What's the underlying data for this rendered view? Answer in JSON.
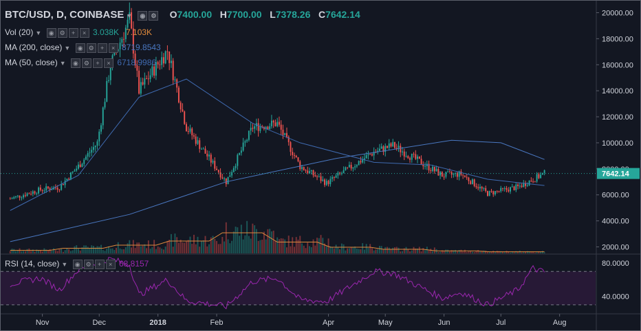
{
  "header": {
    "symbol": "BTC/USD, D, COINBASE",
    "o_label": "O",
    "o_value": "7400.00",
    "h_label": "H",
    "h_value": "7700.00",
    "l_label": "L",
    "l_value": "7378.26",
    "c_label": "C",
    "c_value": "7642.14"
  },
  "indicators": {
    "vol": {
      "name": "Vol (20)",
      "value1": "3.038K",
      "value2": "7.103K"
    },
    "ma200": {
      "name": "MA (200, close)",
      "value": "8719.8543"
    },
    "ma50": {
      "name": "MA (50, close)",
      "value": "6718.9986"
    },
    "rsi": {
      "name": "RSI (14, close)",
      "value": "68.8157"
    }
  },
  "colors": {
    "up": "#26a69a",
    "down": "#ef5350",
    "ma200": "#4a78c2",
    "ma50": "#3f6ab0",
    "vol_ma": "#e08a3c",
    "rsi": "#9c27b0",
    "background": "#131722",
    "axis_text": "#d1d4dc"
  },
  "chart_data": [
    {
      "type": "candlestick",
      "symbol": "BTC/USD",
      "interval": "D",
      "exchange": "COINBASE",
      "ylim": [
        1500,
        20500
      ],
      "y_ticks": [
        2000,
        4000,
        6000,
        8000,
        10000,
        12000,
        14000,
        16000,
        18000,
        20000
      ],
      "y_tick_labels": [
        "2000.00",
        "4000.00",
        "6000.00",
        "8000.00",
        "10000.00",
        "12000.00",
        "14000.00",
        "16000.00",
        "18000.00",
        "20000.00"
      ],
      "x_labels": [
        "Nov",
        "Dec",
        "2018",
        "Feb",
        "Apr",
        "May",
        "Jun",
        "Jul",
        "Aug"
      ],
      "last_price_label": "7642.14",
      "price_points": [
        {
          "date": "2017-10-15",
          "close": 5700
        },
        {
          "date": "2017-10-31",
          "close": 6400
        },
        {
          "date": "2017-11-10",
          "close": 6600
        },
        {
          "date": "2017-11-20",
          "close": 8200
        },
        {
          "date": "2017-11-30",
          "close": 10000
        },
        {
          "date": "2017-12-07",
          "close": 16000
        },
        {
          "date": "2017-12-17",
          "close": 19500
        },
        {
          "date": "2017-12-22",
          "close": 14000
        },
        {
          "date": "2018-01-06",
          "close": 17100
        },
        {
          "date": "2018-01-16",
          "close": 11200
        },
        {
          "date": "2018-02-06",
          "close": 7000
        },
        {
          "date": "2018-02-20",
          "close": 11200
        },
        {
          "date": "2018-03-05",
          "close": 11500
        },
        {
          "date": "2018-03-17",
          "close": 8200
        },
        {
          "date": "2018-03-31",
          "close": 6900
        },
        {
          "date": "2018-04-25",
          "close": 9300
        },
        {
          "date": "2018-05-05",
          "close": 9800
        },
        {
          "date": "2018-05-31",
          "close": 7500
        },
        {
          "date": "2018-06-10",
          "close": 7600
        },
        {
          "date": "2018-06-24",
          "close": 6100
        },
        {
          "date": "2018-07-10",
          "close": 6600
        },
        {
          "date": "2018-07-24",
          "close": 7642
        }
      ],
      "ma200_points": [
        {
          "date": "2017-10-15",
          "value": 2400
        },
        {
          "date": "2017-12-17",
          "value": 4500
        },
        {
          "date": "2018-02-06",
          "value": 7000
        },
        {
          "date": "2018-04-05",
          "value": 8800
        },
        {
          "date": "2018-06-05",
          "value": 10200
        },
        {
          "date": "2018-07-01",
          "value": 10000
        },
        {
          "date": "2018-07-24",
          "value": 8720
        }
      ],
      "ma50_points": [
        {
          "date": "2017-10-15",
          "value": 4800
        },
        {
          "date": "2017-11-20",
          "value": 7500
        },
        {
          "date": "2017-12-22",
          "value": 13500
        },
        {
          "date": "2018-01-16",
          "value": 14900
        },
        {
          "date": "2018-02-20",
          "value": 11500
        },
        {
          "date": "2018-03-17",
          "value": 10000
        },
        {
          "date": "2018-04-25",
          "value": 8500
        },
        {
          "date": "2018-05-25",
          "value": 8300
        },
        {
          "date": "2018-06-24",
          "value": 7200
        },
        {
          "date": "2018-07-24",
          "value": 6719
        }
      ]
    },
    {
      "type": "bar",
      "name": "Vol (20)",
      "description_note": "volume bars along bottom of price pane",
      "approx_relative_levels": [
        0.15,
        0.25,
        0.4,
        0.6,
        1.0,
        0.55,
        0.3,
        0.2,
        0.12,
        0.08
      ]
    },
    {
      "type": "line",
      "name": "RSI (14, close)",
      "ylim": [
        20,
        90
      ],
      "y_ticks": [
        40,
        80
      ],
      "y_tick_labels": [
        "40.0000",
        "80.0000"
      ],
      "bands": [
        30,
        70
      ],
      "points": [
        {
          "date": "2017-10-15",
          "value": 55
        },
        {
          "date": "2017-10-31",
          "value": 62
        },
        {
          "date": "2017-11-10",
          "value": 48
        },
        {
          "date": "2017-11-20",
          "value": 72
        },
        {
          "date": "2017-12-07",
          "value": 85
        },
        {
          "date": "2017-12-17",
          "value": 78
        },
        {
          "date": "2017-12-22",
          "value": 42
        },
        {
          "date": "2018-01-06",
          "value": 60
        },
        {
          "date": "2018-01-16",
          "value": 35
        },
        {
          "date": "2018-02-06",
          "value": 28
        },
        {
          "date": "2018-02-20",
          "value": 58
        },
        {
          "date": "2018-03-05",
          "value": 62
        },
        {
          "date": "2018-03-17",
          "value": 36
        },
        {
          "date": "2018-03-31",
          "value": 34
        },
        {
          "date": "2018-04-25",
          "value": 70
        },
        {
          "date": "2018-05-05",
          "value": 68
        },
        {
          "date": "2018-05-31",
          "value": 38
        },
        {
          "date": "2018-06-10",
          "value": 45
        },
        {
          "date": "2018-06-24",
          "value": 30
        },
        {
          "date": "2018-07-10",
          "value": 48
        },
        {
          "date": "2018-07-18",
          "value": 74
        },
        {
          "date": "2018-07-24",
          "value": 68.8
        }
      ]
    }
  ]
}
